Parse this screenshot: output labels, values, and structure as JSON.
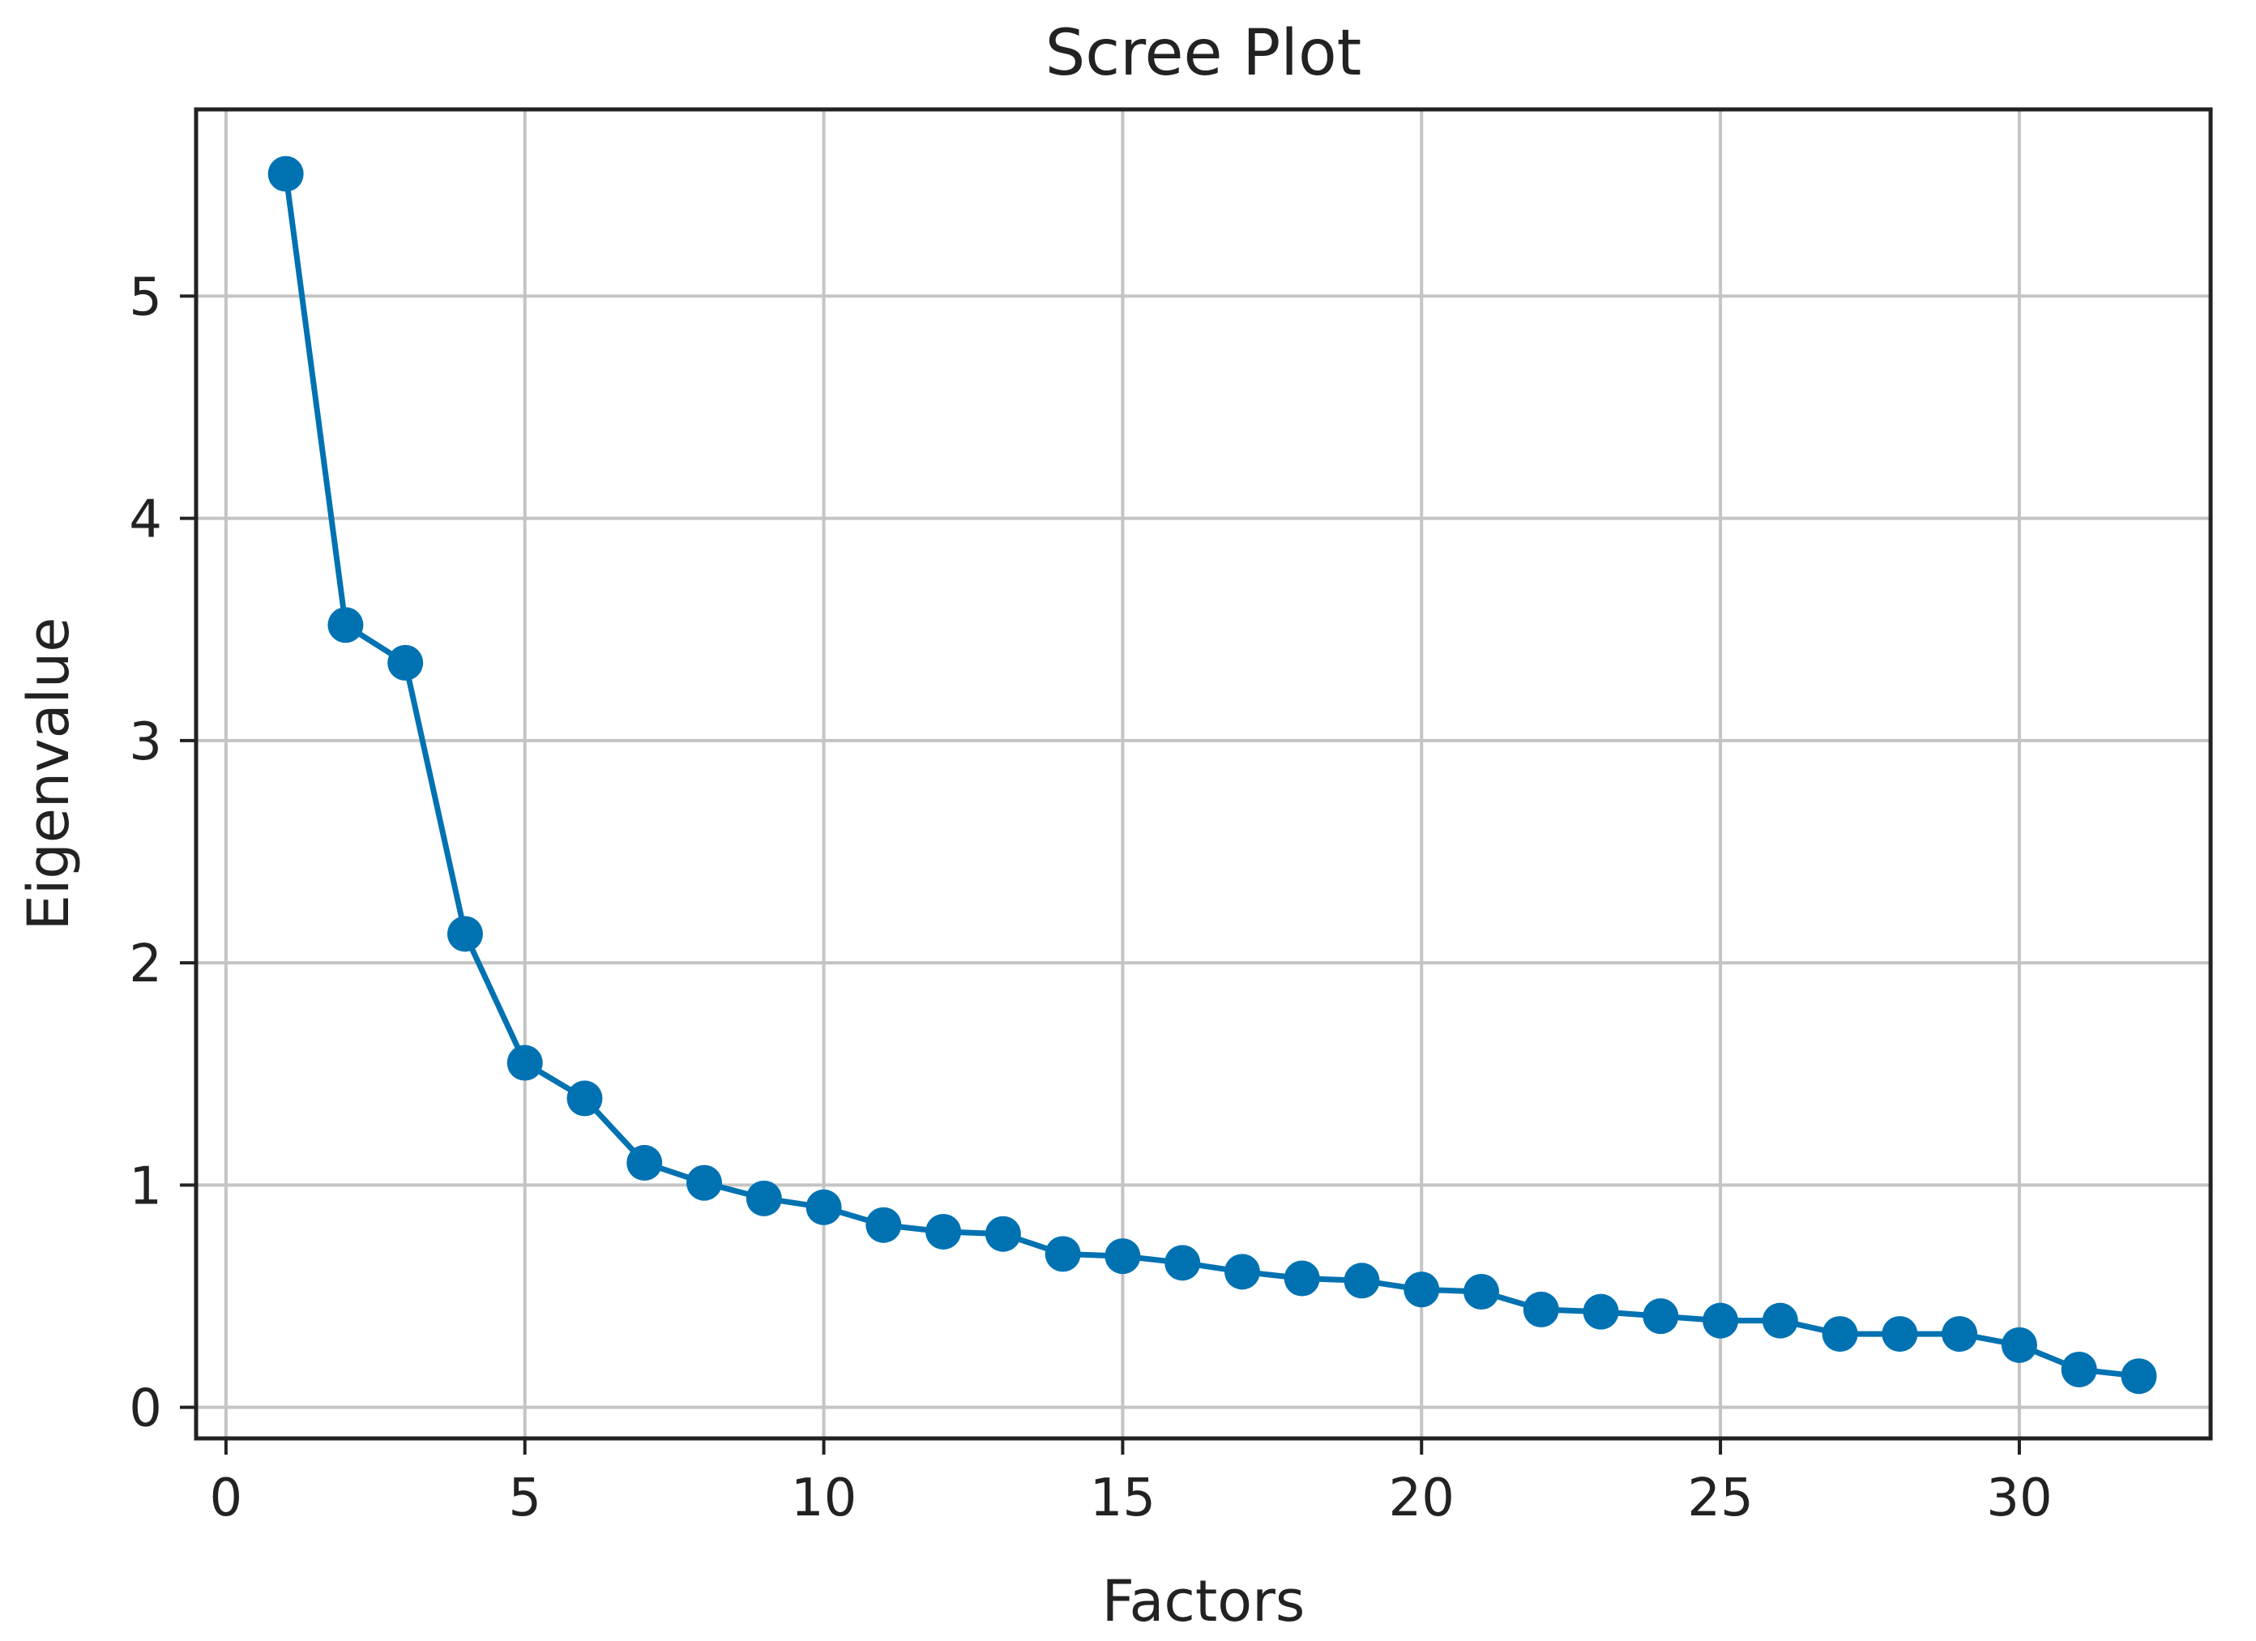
{
  "chart_data": {
    "type": "line",
    "title": "Scree Plot",
    "xlabel": "Factors",
    "ylabel": "Eigenvalue",
    "xlim": [
      -0.5,
      33.2
    ],
    "ylim": [
      -0.14,
      5.84
    ],
    "xticks": [
      0,
      5,
      10,
      15,
      20,
      25,
      30
    ],
    "yticks": [
      0,
      1,
      2,
      3,
      4,
      5
    ],
    "grid": true,
    "legend": "none",
    "marker": "circle",
    "series": [
      {
        "color": "#0072B2",
        "x": [
          1,
          2,
          3,
          4,
          5,
          6,
          7,
          8,
          9,
          10,
          11,
          12,
          13,
          14,
          15,
          16,
          17,
          18,
          19,
          20,
          21,
          22,
          23,
          24,
          25,
          26,
          27,
          28,
          29,
          30,
          31,
          32
        ],
        "y": [
          5.55,
          3.52,
          3.35,
          2.13,
          1.55,
          1.39,
          1.1,
          1.01,
          0.94,
          0.9,
          0.82,
          0.79,
          0.78,
          0.69,
          0.68,
          0.65,
          0.61,
          0.58,
          0.57,
          0.53,
          0.52,
          0.44,
          0.43,
          0.41,
          0.39,
          0.39,
          0.33,
          0.33,
          0.33,
          0.28,
          0.17,
          0.14
        ]
      }
    ]
  }
}
